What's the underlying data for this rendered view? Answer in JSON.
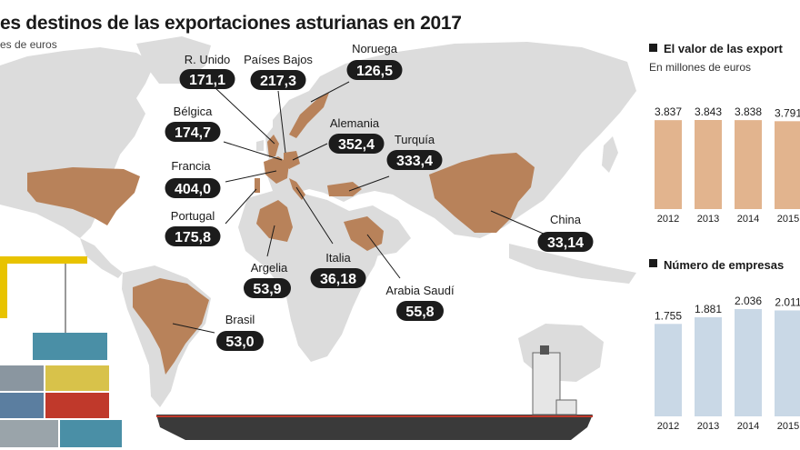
{
  "title": "es destinos de las exportaciones asturianas en 2017",
  "map_subtitle": "es de euros",
  "colors": {
    "highlight": "#b8825a",
    "bar_value": "#e2b48e",
    "bar_companies": "#c9d8e6",
    "land": "#dcdcdc",
    "pill": "#1c1c1c"
  },
  "chart_data": [
    {
      "type": "map",
      "destinations": [
        {
          "name": "R. Unido",
          "value": "171,1"
        },
        {
          "name": "Países Bajos",
          "value": "217,3"
        },
        {
          "name": "Noruega",
          "value": "126,5"
        },
        {
          "name": "Bélgica",
          "value": "174,7"
        },
        {
          "name": "Alemania",
          "value": "352,4"
        },
        {
          "name": "Turquía",
          "value": "333,4"
        },
        {
          "name": "Francia",
          "value": "404,0"
        },
        {
          "name": "Portugal",
          "value": "175,8"
        },
        {
          "name": "China",
          "value": "33,14"
        },
        {
          "name": "Argelia",
          "value": "53,9"
        },
        {
          "name": "Italia",
          "value": "36,18"
        },
        {
          "name": "Arabia Saudí",
          "value": "55,8"
        },
        {
          "name": "Brasil",
          "value": "53,0"
        }
      ]
    },
    {
      "type": "bar",
      "title": "El valor de las export",
      "subtitle": "En millones de euros",
      "categories": [
        "2012",
        "2013",
        "2014",
        "2015"
      ],
      "values": [
        3837,
        3843,
        3838,
        3791
      ],
      "value_labels": [
        "3.837",
        "3.843",
        "3.838",
        "3.791"
      ],
      "ylim": [
        0,
        4000
      ]
    },
    {
      "type": "bar",
      "title": "Número de empresas",
      "categories": [
        "2012",
        "2013",
        "2014",
        "2015"
      ],
      "values": [
        1755,
        1881,
        2036,
        2011
      ],
      "value_labels": [
        "1.755",
        "1.881",
        "2.036",
        "2.011"
      ],
      "ylim": [
        0,
        2036
      ]
    }
  ]
}
